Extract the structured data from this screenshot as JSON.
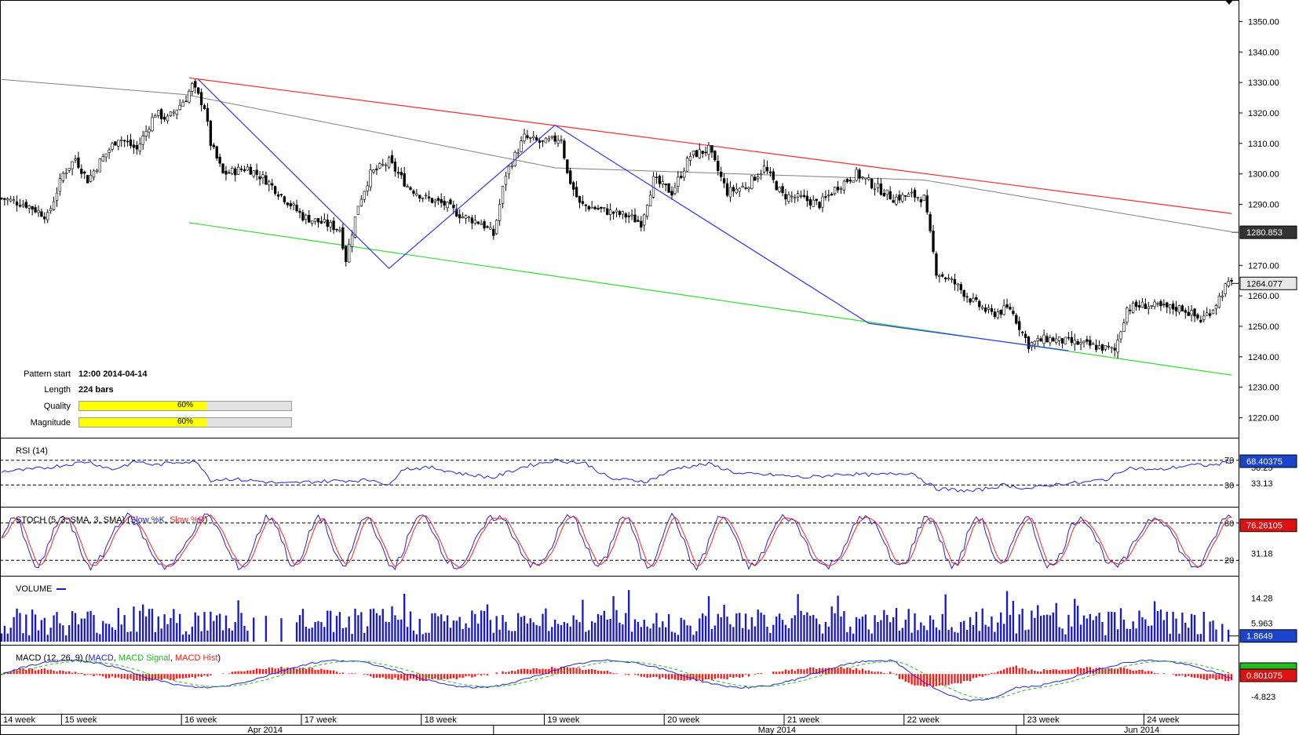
{
  "colors": {
    "upper_trendline": "#ff2a2a",
    "lower_trendline": "#33dd33",
    "zigzag": "#3333ff",
    "moving_average": "#808080",
    "rsi": "#2222dd",
    "stoch_k": "#2222dd",
    "stoch_d": "#ff2222",
    "volume": "#1a1acc",
    "macd": "#2222dd",
    "macd_signal": "#22bb22",
    "macd_hist": "#ff1a1a",
    "up_candle": "#ffffff",
    "down_candle": "#000000"
  },
  "pattern_info": {
    "start_label": "Pattern start",
    "start_value": "12:00 2014-04-14",
    "length_label": "Length",
    "length_value": "224 bars",
    "quality_label": "Quality",
    "quality_value": "60%",
    "quality_fraction": 0.6,
    "magnitude_label": "Magnitude",
    "magnitude_value": "60%",
    "magnitude_fraction": 0.6
  },
  "chart_data": [
    {
      "type": "candlestick",
      "panel": "price",
      "ylim": [
        1215,
        1355
      ],
      "y_ticks": [
        "1220.00",
        "1230.00",
        "1240.00",
        "1250.00",
        "1260.00",
        "1270.00",
        "1290.00",
        "1300.00",
        "1310.00",
        "1320.00",
        "1330.00",
        "1340.00",
        "1350.00"
      ],
      "y_tick_values": [
        1220,
        1230,
        1240,
        1250,
        1260,
        1270,
        1290,
        1300,
        1310,
        1320,
        1330,
        1340,
        1350
      ],
      "price_labels": [
        {
          "text": "1280.853",
          "value": 1280.853,
          "style": "dark"
        },
        {
          "text": "1264.077",
          "value": 1264.077,
          "style": "light"
        }
      ],
      "close_anchors": [
        [
          0,
          1292
        ],
        [
          8,
          1290
        ],
        [
          15,
          1286
        ],
        [
          20,
          1300
        ],
        [
          24,
          1305
        ],
        [
          28,
          1298
        ],
        [
          32,
          1304
        ],
        [
          38,
          1312
        ],
        [
          44,
          1308
        ],
        [
          50,
          1320
        ],
        [
          54,
          1318
        ],
        [
          60,
          1325
        ],
        [
          62,
          1329
        ],
        [
          66,
          1322
        ],
        [
          68,
          1310
        ],
        [
          72,
          1300
        ],
        [
          80,
          1302
        ],
        [
          86,
          1298
        ],
        [
          92,
          1292
        ],
        [
          98,
          1286
        ],
        [
          104,
          1284
        ],
        [
          110,
          1282
        ],
        [
          112,
          1272
        ],
        [
          116,
          1290
        ],
        [
          120,
          1300
        ],
        [
          126,
          1304
        ],
        [
          132,
          1296
        ],
        [
          138,
          1292
        ],
        [
          144,
          1290
        ],
        [
          150,
          1286
        ],
        [
          156,
          1284
        ],
        [
          160,
          1280
        ],
        [
          164,
          1300
        ],
        [
          170,
          1312
        ],
        [
          176,
          1310
        ],
        [
          182,
          1312
        ],
        [
          184,
          1300
        ],
        [
          188,
          1290
        ],
        [
          196,
          1288
        ],
        [
          204,
          1286
        ],
        [
          208,
          1284
        ],
        [
          212,
          1298
        ],
        [
          218,
          1294
        ],
        [
          224,
          1306
        ],
        [
          230,
          1308
        ],
        [
          236,
          1294
        ],
        [
          242,
          1296
        ],
        [
          248,
          1302
        ],
        [
          254,
          1293
        ],
        [
          260,
          1292
        ],
        [
          266,
          1290
        ],
        [
          272,
          1296
        ],
        [
          278,
          1300
        ],
        [
          284,
          1296
        ],
        [
          290,
          1292
        ],
        [
          296,
          1293
        ],
        [
          300,
          1292
        ],
        [
          304,
          1268
        ],
        [
          310,
          1264
        ],
        [
          316,
          1258
        ],
        [
          322,
          1254
        ],
        [
          328,
          1256
        ],
        [
          334,
          1244
        ],
        [
          340,
          1246
        ],
        [
          346,
          1245
        ],
        [
          352,
          1244
        ],
        [
          358,
          1243
        ],
        [
          362,
          1242
        ],
        [
          366,
          1256
        ],
        [
          372,
          1257
        ],
        [
          378,
          1256
        ],
        [
          384,
          1256
        ],
        [
          390,
          1252
        ],
        [
          394,
          1256
        ],
        [
          398,
          1263
        ],
        [
          400,
          1264
        ]
      ],
      "candle_count": 401,
      "upper_trendline": [
        [
          61,
          1331.5
        ],
        [
          400,
          1287
        ]
      ],
      "lower_trendline": [
        [
          61,
          1284
        ],
        [
          400,
          1234
        ]
      ],
      "zigzag": [
        [
          64,
          1331
        ],
        [
          126,
          1269
        ],
        [
          180,
          1316
        ],
        [
          282,
          1251
        ],
        [
          347,
          1242
        ]
      ],
      "moving_average": [
        [
          0,
          1331
        ],
        [
          60,
          1326
        ],
        [
          180,
          1302
        ],
        [
          300,
          1298
        ],
        [
          400,
          1281
        ]
      ]
    },
    {
      "type": "line",
      "panel": "rsi",
      "title": "RSI (14)",
      "ylim": [
        0,
        100
      ],
      "levels": [
        70,
        30
      ],
      "level_labels": [
        "70",
        "30"
      ],
      "extra_labels": [
        "58.25",
        "33.13"
      ],
      "current_value": "68.40375",
      "values_anchors": [
        [
          0,
          52
        ],
        [
          10,
          55
        ],
        [
          20,
          62
        ],
        [
          28,
          68
        ],
        [
          36,
          55
        ],
        [
          44,
          68
        ],
        [
          50,
          62
        ],
        [
          58,
          68
        ],
        [
          64,
          66
        ],
        [
          68,
          38
        ],
        [
          74,
          40
        ],
        [
          84,
          36
        ],
        [
          92,
          32
        ],
        [
          100,
          35
        ],
        [
          110,
          37
        ],
        [
          122,
          38
        ],
        [
          126,
          28
        ],
        [
          130,
          56
        ],
        [
          140,
          58
        ],
        [
          150,
          48
        ],
        [
          160,
          42
        ],
        [
          170,
          60
        ],
        [
          180,
          70
        ],
        [
          190,
          65
        ],
        [
          198,
          40
        ],
        [
          210,
          36
        ],
        [
          220,
          58
        ],
        [
          230,
          64
        ],
        [
          240,
          48
        ],
        [
          252,
          46
        ],
        [
          262,
          42
        ],
        [
          274,
          48
        ],
        [
          284,
          46
        ],
        [
          296,
          50
        ],
        [
          304,
          24
        ],
        [
          316,
          20
        ],
        [
          326,
          30
        ],
        [
          334,
          24
        ],
        [
          344,
          32
        ],
        [
          352,
          34
        ],
        [
          360,
          40
        ],
        [
          366,
          58
        ],
        [
          376,
          54
        ],
        [
          386,
          62
        ],
        [
          394,
          62
        ],
        [
          400,
          68
        ]
      ]
    },
    {
      "type": "line",
      "panel": "stochastic",
      "title": "STOCH (5, 3, SMA, 3, SMA)",
      "series": [
        {
          "name": "Slow %K"
        },
        {
          "name": "Slow %D"
        }
      ],
      "ylim": [
        0,
        100
      ],
      "levels": [
        80,
        20
      ],
      "level_labels": [
        "80",
        "20"
      ],
      "extra_labels": [
        "31.18"
      ],
      "current_value": "76.26105"
    },
    {
      "type": "bar",
      "panel": "volume",
      "title": "VOLUME",
      "ylim": [
        0,
        20
      ],
      "y_ticks": [
        "14.28",
        "5.963"
      ],
      "y_tick_values": [
        14.28,
        5.963
      ],
      "current_value": "1.8649"
    },
    {
      "type": "line",
      "panel": "macd",
      "title": "MACD (12, 26, 9)",
      "series": [
        {
          "name": "MACD"
        },
        {
          "name": "MACD Signal"
        },
        {
          "name": "MACD Hist"
        }
      ],
      "y_ticks": [
        "-4.823"
      ],
      "current_value": "0.801075"
    }
  ],
  "x_axis": {
    "weeks": [
      {
        "label": "14 week",
        "bar": 0
      },
      {
        "label": "15 week",
        "bar": 20
      },
      {
        "label": "16 week",
        "bar": 59
      },
      {
        "label": "17 week",
        "bar": 98
      },
      {
        "label": "18 week",
        "bar": 137
      },
      {
        "label": "19 week",
        "bar": 177
      },
      {
        "label": "20 week",
        "bar": 216
      },
      {
        "label": "21 week",
        "bar": 255
      },
      {
        "label": "22 week",
        "bar": 294
      },
      {
        "label": "23 week",
        "bar": 333
      },
      {
        "label": "24 week",
        "bar": 372
      }
    ],
    "months": [
      {
        "label": "Apr 2014",
        "bar": 80
      },
      {
        "label": "May 2014",
        "bar": 246
      },
      {
        "label": "Jun 2014",
        "bar": 365
      }
    ]
  }
}
